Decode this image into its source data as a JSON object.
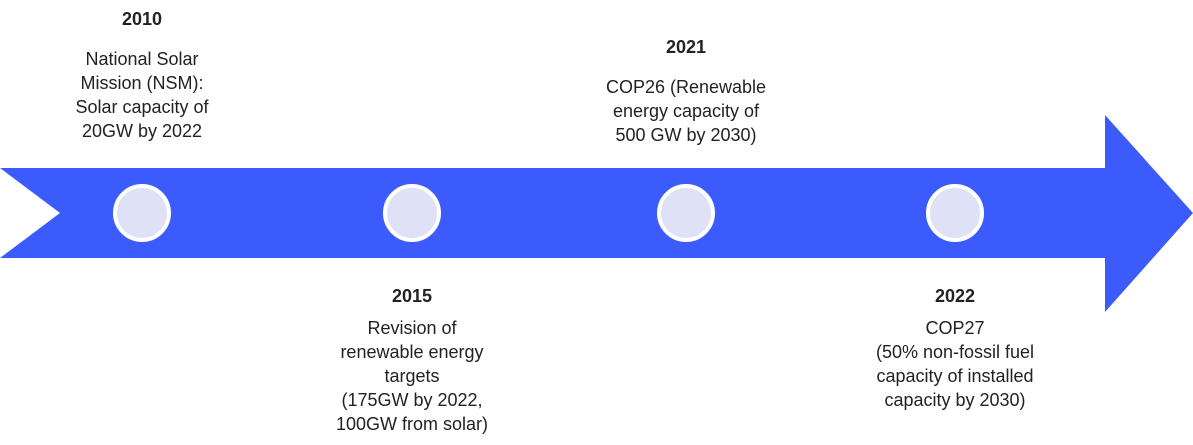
{
  "events": [
    {
      "year": "2010",
      "lines": [
        "National Solar",
        "Mission (NSM):",
        "Solar capacity of",
        "20GW by 2022"
      ]
    },
    {
      "year": "2015",
      "lines": [
        "Revision of",
        "renewable energy",
        "targets",
        "(175GW by 2022,",
        "100GW from solar)"
      ]
    },
    {
      "year": "2021",
      "lines": [
        "COP26 (Renewable",
        "energy capacity of",
        "500 GW by 2030)"
      ]
    },
    {
      "year": "2022",
      "lines": [
        "COP27",
        "(50% non-fossil fuel",
        "capacity of installed",
        "capacity by 2030)"
      ]
    }
  ]
}
